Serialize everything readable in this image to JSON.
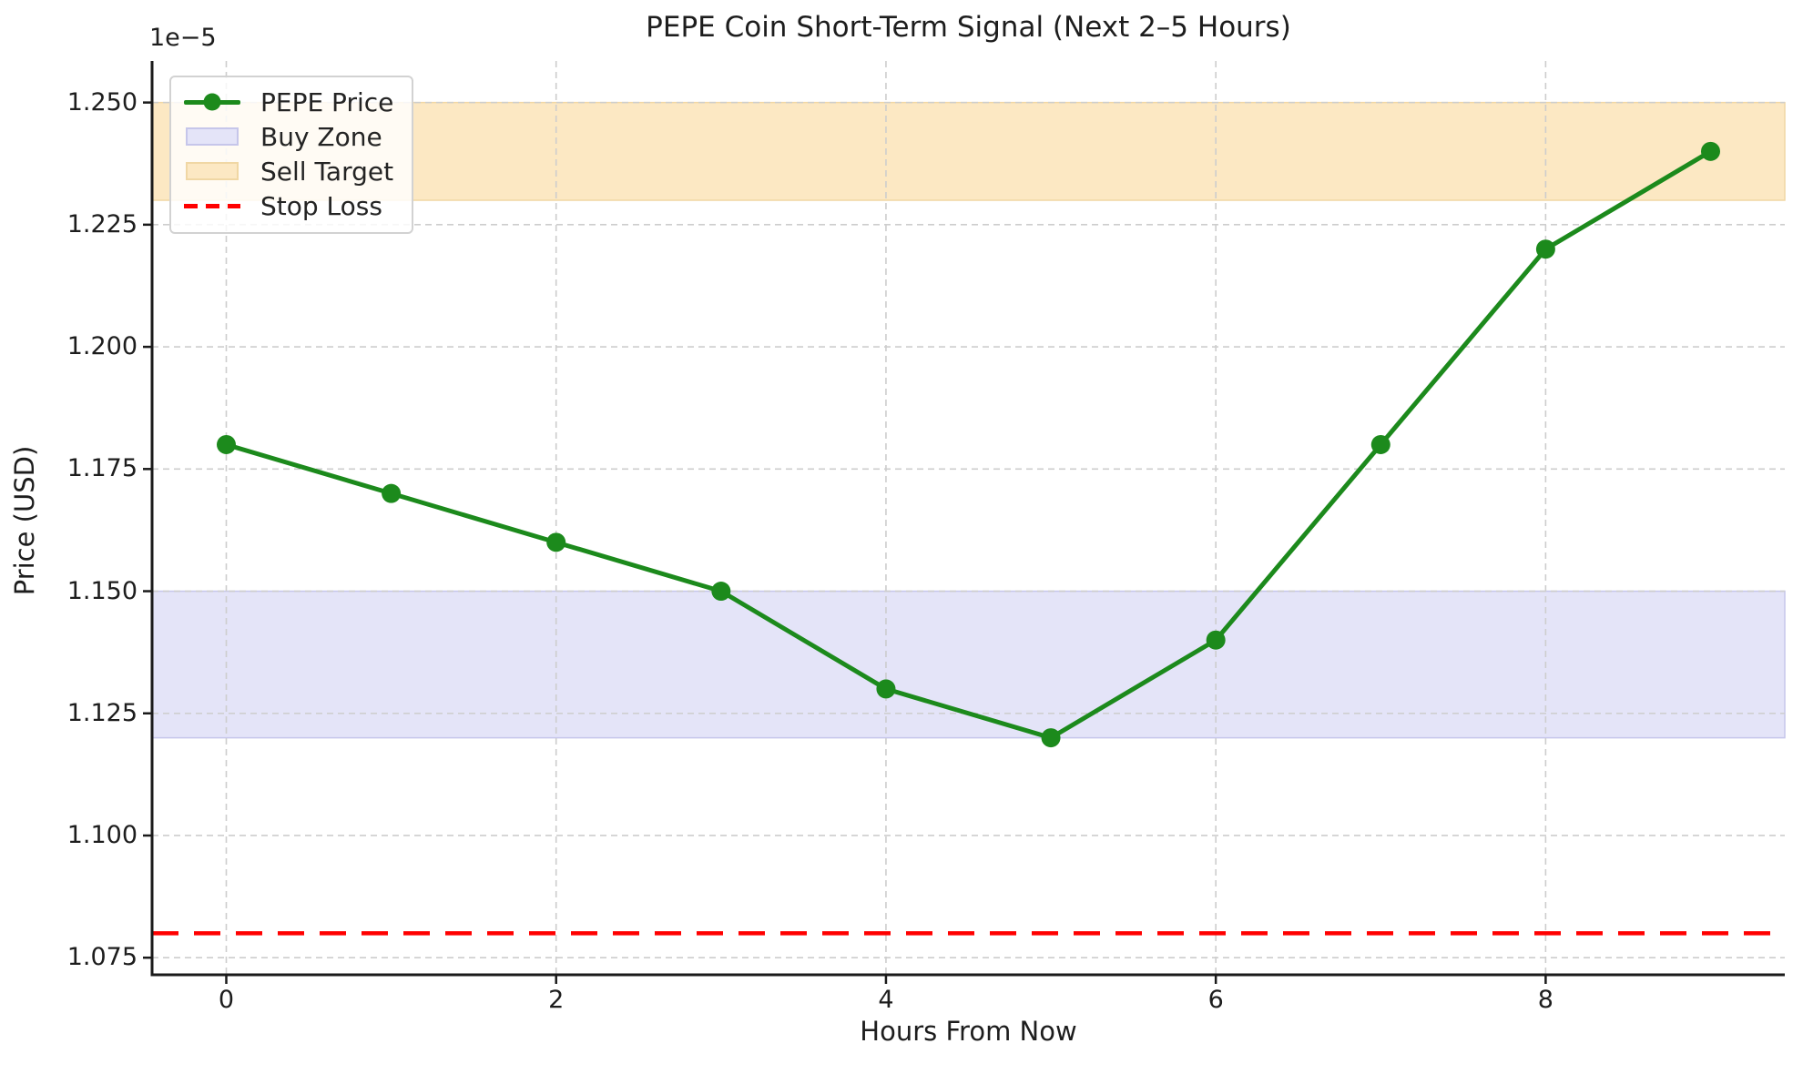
{
  "chart_data": {
    "type": "line",
    "title": "PEPE Coin Short-Term Signal (Next 2–5 Hours)",
    "xlabel": "Hours From Now",
    "ylabel": "Price (USD)",
    "y_offset_text": "1e−5",
    "y_unit_scale": "1e-5",
    "x": [
      0,
      1,
      2,
      3,
      4,
      5,
      6,
      7,
      8,
      9
    ],
    "series": [
      {
        "name": "PEPE Price",
        "values": [
          1.18,
          1.17,
          1.16,
          1.15,
          1.13,
          1.12,
          1.14,
          1.18,
          1.22,
          1.24
        ],
        "color": "#1c8a1c",
        "marker": "circle",
        "line_style": "solid"
      }
    ],
    "bands": [
      {
        "name": "Buy Zone",
        "ymin": 1.12,
        "ymax": 1.15,
        "fill": "#e4e4f8",
        "edge": "#c6c6ea"
      },
      {
        "name": "Sell Target",
        "ymin": 1.23,
        "ymax": 1.25,
        "fill": "#fce8c3",
        "edge": "#f0d7a4"
      }
    ],
    "hlines": [
      {
        "name": "Stop Loss",
        "y": 1.08,
        "color": "#ff0000",
        "style": "dashed"
      }
    ],
    "xlim": [
      -0.45,
      9.45
    ],
    "ylim": [
      1.0715,
      1.2585
    ],
    "x_tick_labels": [
      "0",
      "2",
      "4",
      "6",
      "8"
    ],
    "y_tick_labels": [
      "1.075",
      "1.100",
      "1.125",
      "1.150",
      "1.175",
      "1.200",
      "1.225",
      "1.250"
    ],
    "grid": "both, dashed, light gray",
    "legend": {
      "position": "upper left",
      "entries": [
        {
          "label": "PEPE Price",
          "swatch": "line-with-marker"
        },
        {
          "label": "Buy Zone",
          "swatch": "patch"
        },
        {
          "label": "Sell Target",
          "swatch": "patch"
        },
        {
          "label": "Stop Loss",
          "swatch": "dashed-line"
        }
      ]
    },
    "colors": {
      "series_green": "#1c8a1c",
      "stop_loss_red": "#ff0000",
      "buy_zone_fill": "#e4e4f8",
      "buy_zone_edge": "#c6c6ea",
      "sell_target_fill": "#fce8c3",
      "sell_target_edge": "#f0d7a4",
      "grid": "#cdcdcd",
      "spine": "#1a1a1a",
      "text": "#1d1d1d"
    }
  }
}
